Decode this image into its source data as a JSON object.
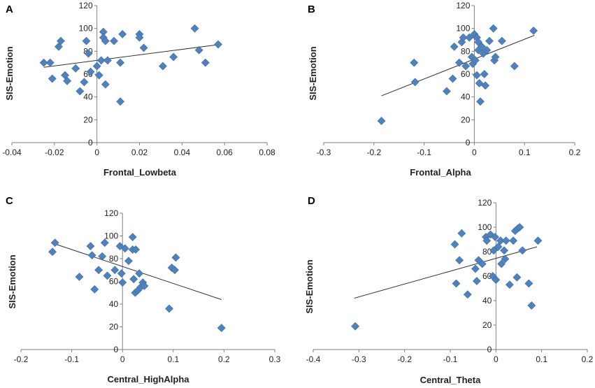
{
  "chart_data": [
    {
      "type": "scatter",
      "panel": "A",
      "xlabel": "Frontal_Lowbeta",
      "ylabel": "SIS-Emotion",
      "xlim": [
        -0.04,
        0.08
      ],
      "ylim": [
        0,
        120
      ],
      "xticks": [
        -0.04,
        -0.02,
        0,
        0.02,
        0.04,
        0.06,
        0.08
      ],
      "xtick_labels": [
        "-0.04",
        "-0.02",
        "0",
        "0.02",
        "0.04",
        "0.06",
        "0.08"
      ],
      "yticks": [
        0,
        20,
        40,
        60,
        80,
        100,
        120
      ],
      "ytick_labels": [
        "0",
        "20",
        "40",
        "60",
        "80",
        "100",
        "120"
      ],
      "trendline": {
        "x": [
          -0.025,
          0.058
        ],
        "y": [
          66,
          86
        ]
      },
      "x": [
        -0.025,
        -0.022,
        -0.021,
        -0.018,
        -0.017,
        -0.015,
        -0.014,
        -0.01,
        -0.008,
        -0.006,
        -0.005,
        -0.004,
        -0.003,
        0.0,
        0.001,
        0.002,
        0.003,
        0.003,
        0.004,
        0.004,
        0.005,
        0.008,
        0.011,
        0.011,
        0.012,
        0.02,
        0.02,
        0.022,
        0.031,
        0.036,
        0.046,
        0.048,
        0.051,
        0.057
      ],
      "y": [
        70,
        70,
        56,
        84,
        89,
        59,
        54,
        65,
        45,
        53,
        89,
        78,
        62,
        67,
        59,
        72,
        97,
        92,
        89,
        51,
        72,
        89,
        36,
        70,
        95,
        95,
        92,
        83,
        67,
        75,
        100,
        81,
        70,
        86
      ]
    },
    {
      "type": "scatter",
      "panel": "B",
      "xlabel": "Frontal_Alpha",
      "ylabel": "SIS-Emotion",
      "xlim": [
        -0.3,
        0.2
      ],
      "ylim": [
        0,
        120
      ],
      "xticks": [
        -0.3,
        -0.2,
        -0.1,
        0,
        0.1,
        0.2
      ],
      "xtick_labels": [
        "-0.3",
        "-0.2",
        "-0.1",
        "0",
        "0.1",
        "0.2"
      ],
      "yticks": [
        0,
        20,
        40,
        60,
        80,
        100,
        120
      ],
      "ytick_labels": [
        "0",
        "20",
        "40",
        "60",
        "80",
        "100",
        "120"
      ],
      "trendline": {
        "x": [
          -0.185,
          0.12
        ],
        "y": [
          41,
          94
        ]
      },
      "x": [
        -0.185,
        -0.12,
        -0.118,
        -0.055,
        -0.043,
        -0.04,
        -0.03,
        -0.025,
        -0.022,
        -0.017,
        -0.01,
        -0.005,
        -0.003,
        0.0,
        0.002,
        0.005,
        0.005,
        0.008,
        0.008,
        0.01,
        0.012,
        0.015,
        0.018,
        0.02,
        0.022,
        0.025,
        0.03,
        0.038,
        0.04,
        0.042,
        0.055,
        0.08,
        0.118
      ],
      "y": [
        19,
        70,
        53,
        45,
        56,
        84,
        70,
        88,
        92,
        67,
        92,
        75,
        69,
        95,
        72,
        59,
        92,
        81,
        88,
        52,
        36,
        84,
        78,
        60,
        50,
        81,
        89,
        100,
        72,
        75,
        89,
        67,
        98
      ]
    },
    {
      "type": "scatter",
      "panel": "C",
      "xlabel": "Central_HighAlpha",
      "ylabel": "SIS-Emotion",
      "xlim": [
        -0.2,
        0.3
      ],
      "ylim": [
        0,
        120
      ],
      "xticks": [
        -0.2,
        -0.1,
        0,
        0.1,
        0.2,
        0.3
      ],
      "xtick_labels": [
        "-0.2",
        "-0.1",
        "0",
        "0.1",
        "0.2",
        "0.3"
      ],
      "yticks": [
        0,
        20,
        40,
        60,
        80,
        100,
        120
      ],
      "ytick_labels": [
        "0",
        "20",
        "40",
        "60",
        "80",
        "100",
        "120"
      ],
      "trendline": {
        "x": [
          -0.14,
          0.195
        ],
        "y": [
          94,
          44
        ]
      },
      "x": [
        -0.138,
        -0.133,
        -0.085,
        -0.063,
        -0.06,
        -0.055,
        -0.047,
        -0.04,
        -0.035,
        -0.03,
        -0.015,
        -0.005,
        -0.002,
        0.0,
        0.005,
        0.012,
        0.02,
        0.02,
        0.022,
        0.025,
        0.026,
        0.03,
        0.033,
        0.036,
        0.04,
        0.043,
        0.092,
        0.097,
        0.103,
        0.105,
        0.195
      ],
      "y": [
        86,
        94,
        64,
        91,
        83,
        53,
        70,
        82,
        94,
        65,
        70,
        91,
        67,
        59,
        89,
        78,
        88,
        99,
        62,
        50,
        88,
        52,
        67,
        55,
        59,
        56,
        36,
        72,
        70,
        81,
        19
      ]
    },
    {
      "type": "scatter",
      "panel": "D",
      "xlabel": "Central_Theta",
      "ylabel": "SIS-Emotion",
      "xlim": [
        -0.4,
        0.2
      ],
      "ylim": [
        0,
        120
      ],
      "xticks": [
        -0.4,
        -0.3,
        -0.2,
        -0.1,
        0,
        0.1,
        0.2
      ],
      "xtick_labels": [
        "-0.4",
        "-0.3",
        "-0.2",
        "-0.1",
        "0",
        "0.1",
        "0.2"
      ],
      "yticks": [
        0,
        20,
        40,
        60,
        80,
        100,
        120
      ],
      "ytick_labels": [
        "0",
        "20",
        "40",
        "60",
        "80",
        "100",
        "120"
      ],
      "trendline": {
        "x": [
          -0.31,
          0.09
        ],
        "y": [
          42,
          84
        ]
      },
      "x": [
        -0.308,
        -0.09,
        -0.087,
        -0.08,
        -0.075,
        -0.062,
        -0.045,
        -0.042,
        -0.038,
        -0.03,
        -0.022,
        -0.02,
        -0.012,
        -0.007,
        -0.005,
        -0.002,
        0.0,
        0.005,
        0.01,
        0.012,
        0.018,
        0.02,
        0.022,
        0.03,
        0.038,
        0.042,
        0.046,
        0.048,
        0.052,
        0.058,
        0.072,
        0.078,
        0.092
      ],
      "y": [
        19,
        86,
        54,
        73,
        95,
        45,
        66,
        56,
        73,
        70,
        92,
        89,
        94,
        60,
        81,
        92,
        57,
        84,
        89,
        70,
        81,
        74,
        89,
        53,
        89,
        97,
        59,
        99,
        100,
        81,
        54,
        36,
        89
      ]
    }
  ],
  "colors": {
    "marker": "#4F81BD",
    "axis": "#7f7f7f",
    "trend": "#333333"
  }
}
